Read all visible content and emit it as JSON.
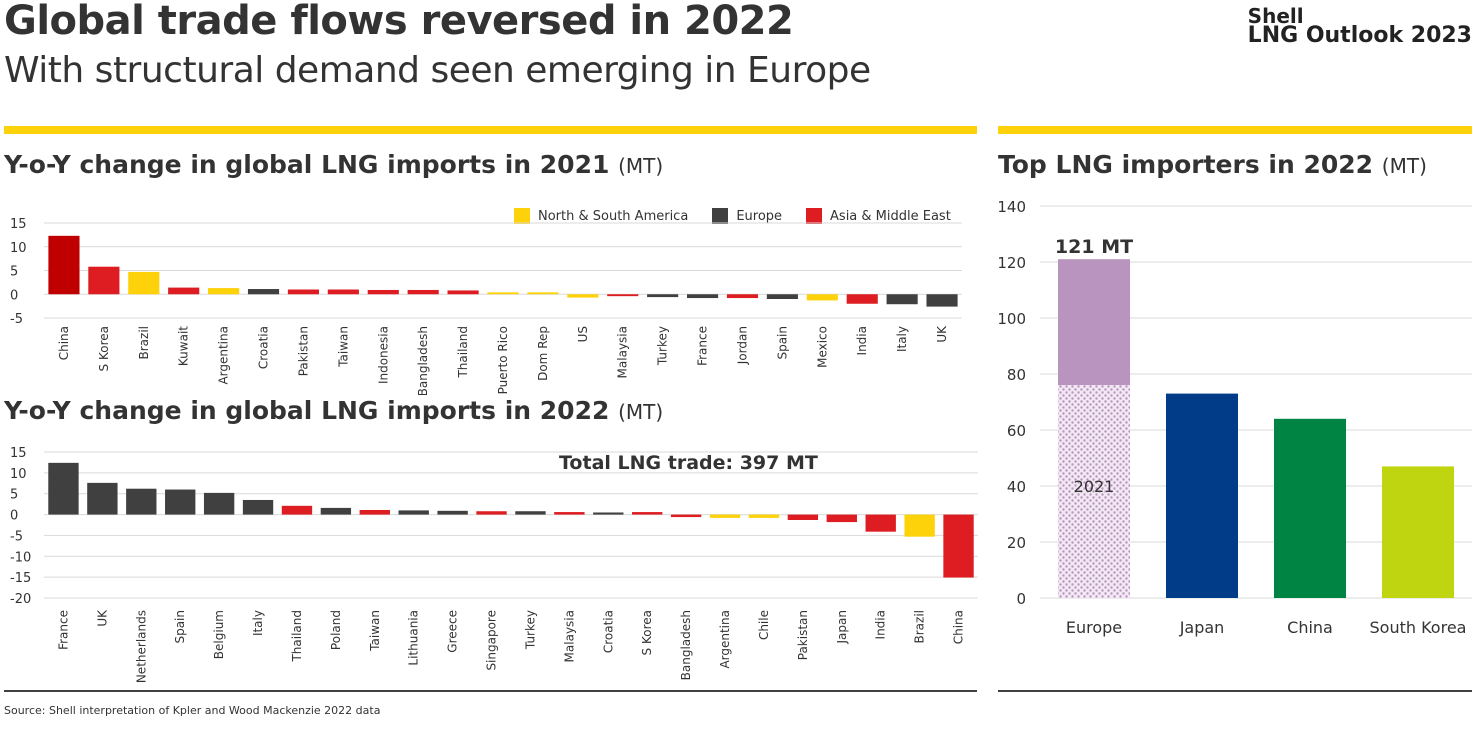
{
  "header": {
    "title": "Global trade flows reversed in 2022",
    "subtitle": "With structural demand seen emerging in Europe",
    "brand_line1": "Shell",
    "brand_line2": "LNG Outlook 2023"
  },
  "colors": {
    "americas": "#fdd20a",
    "europe": "#404040",
    "asia": "#dd1d21",
    "china2021": "#c00000",
    "rule": "#fdd20a",
    "europe_bar": "#b994be",
    "japan_bar": "#003c88",
    "china_bar": "#008443",
    "korea_bar": "#bed50f"
  },
  "legend": {
    "americas": "North & South America",
    "europe": "Europe",
    "asia": "Asia & Middle East"
  },
  "source": "Source: Shell interpretation of Kpler and Wood Mackenzie 2022 data",
  "chart_data": [
    {
      "type": "bar",
      "title": "Y-o-Y change in global LNG imports in 2021",
      "unit": "(MT)",
      "ylim": [
        -5,
        15
      ],
      "yticks": [
        15,
        10,
        5,
        0,
        -5
      ],
      "grid": true,
      "legend_position": "top-right",
      "categories": [
        "China",
        "S Korea",
        "Brazil",
        "Kuwait",
        "Argentina",
        "Croatia",
        "Pakistan",
        "Taiwan",
        "Indonesia",
        "Bangladesh",
        "Thailand",
        "Puerto Rico",
        "Dom Rep",
        "US",
        "Malaysia",
        "Turkey",
        "France",
        "Jordan",
        "Spain",
        "Mexico",
        "India",
        "Italy",
        "UK"
      ],
      "values": [
        12.3,
        5.8,
        4.7,
        1.4,
        1.3,
        1.1,
        1.0,
        1.0,
        0.9,
        0.9,
        0.8,
        0.4,
        0.4,
        -0.7,
        -0.4,
        -0.6,
        -0.8,
        -0.8,
        -1.0,
        -1.3,
        -2.0,
        -2.1,
        -2.6
      ],
      "regions": [
        "china2021",
        "asia",
        "americas",
        "asia",
        "americas",
        "europe",
        "asia",
        "asia",
        "asia",
        "asia",
        "asia",
        "americas",
        "americas",
        "americas",
        "asia",
        "europe",
        "europe",
        "asia",
        "europe",
        "americas",
        "asia",
        "europe",
        "europe"
      ]
    },
    {
      "type": "bar",
      "title": "Y-o-Y change in global LNG imports in 2022",
      "unit": "(MT)",
      "annotation": "Total LNG trade: 397 MT",
      "ylim": [
        -20,
        15
      ],
      "yticks": [
        15,
        10,
        5,
        0,
        -5,
        -10,
        -15,
        -20
      ],
      "grid": true,
      "categories": [
        "France",
        "UK",
        "Netherlands",
        "Spain",
        "Belgium",
        "Italy",
        "Thailand",
        "Poland",
        "Taiwan",
        "Lithuania",
        "Greece",
        "Singapore",
        "Turkey",
        "Malaysia",
        "Croatia",
        "S Korea",
        "Bangladesh",
        "Argentina",
        "Chile",
        "Pakistan",
        "Japan",
        "India",
        "Brazil",
        "China"
      ],
      "values": [
        12.4,
        7.6,
        6.2,
        6.0,
        5.2,
        3.5,
        2.1,
        1.6,
        1.1,
        1.0,
        0.9,
        0.8,
        0.8,
        0.6,
        0.5,
        0.6,
        -0.6,
        -0.8,
        -0.8,
        -1.3,
        -1.8,
        -4.1,
        -5.3,
        -15.1
      ],
      "regions": [
        "europe",
        "europe",
        "europe",
        "europe",
        "europe",
        "europe",
        "asia",
        "europe",
        "asia",
        "europe",
        "europe",
        "asia",
        "europe",
        "asia",
        "europe",
        "asia",
        "asia",
        "americas",
        "americas",
        "asia",
        "asia",
        "asia",
        "americas",
        "asia"
      ]
    },
    {
      "type": "bar",
      "title": "Top LNG importers in 2022",
      "unit": "(MT)",
      "ylim": [
        0,
        140
      ],
      "yticks": [
        140,
        120,
        100,
        80,
        60,
        40,
        20,
        0
      ],
      "grid": true,
      "categories": [
        "Europe",
        "Japan",
        "China",
        "South Korea"
      ],
      "values": [
        121,
        73,
        64,
        47
      ],
      "europe_2021_value": 76,
      "europe_2021_label": "2021",
      "europe_label": "121 MT",
      "color_keys": [
        "europe_bar",
        "japan_bar",
        "china_bar",
        "korea_bar"
      ]
    }
  ]
}
